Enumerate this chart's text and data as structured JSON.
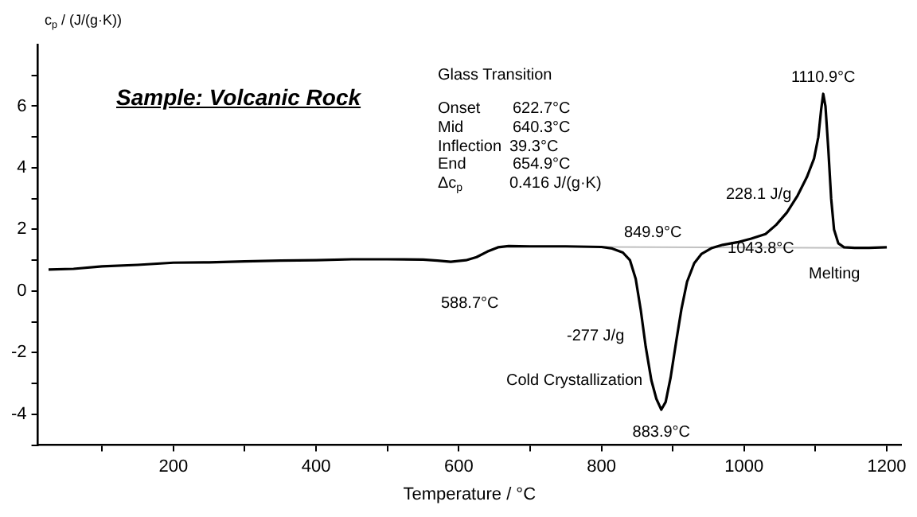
{
  "chart_data": {
    "type": "line",
    "title": "Sample: Volcanic Rock",
    "xlabel": "Temperature / °C",
    "ylabel": "c$_{p}$ / (J/(g·K))",
    "xlim": [
      10,
      1220
    ],
    "xticks": [
      {
        "value": 100,
        "label": null
      },
      200,
      {
        "value": 300,
        "label": null
      },
      400,
      {
        "value": 500,
        "label": null
      },
      600,
      {
        "value": 700,
        "label": null
      },
      800,
      {
        "value": 900,
        "label": null
      },
      1000,
      {
        "value": 1100,
        "label": null
      },
      1200
    ],
    "ylim": [
      -5,
      8
    ],
    "yticks": [
      {
        "value": -5,
        "label": null
      },
      -4,
      {
        "value": -3,
        "label": null
      },
      -2,
      {
        "value": -1,
        "label": null
      },
      0,
      {
        "value": 1,
        "label": null
      },
      2,
      {
        "value": 3,
        "label": null
      },
      4,
      {
        "value": 5,
        "label": null
      },
      6,
      {
        "value": 7,
        "label": null
      }
    ],
    "grid": false,
    "legend": false,
    "marker": "none",
    "line_style": "solid",
    "series": [
      {
        "color": "#000000",
        "x": [
          25,
          60,
          100,
          150,
          200,
          250,
          300,
          350,
          400,
          450,
          500,
          550,
          570,
          588.7,
          610,
          625,
          640,
          655,
          670,
          700,
          750,
          800,
          815,
          830,
          840,
          848,
          855,
          862,
          870,
          877,
          883.9,
          890,
          897,
          905,
          912,
          920,
          930,
          940,
          955,
          970,
          990,
          1010,
          1030,
          1045,
          1060,
          1075,
          1088,
          1098,
          1104,
          1108,
          1110.9,
          1114,
          1118,
          1122,
          1126,
          1132,
          1140,
          1155,
          1175,
          1200
        ],
        "values": [
          0.7,
          0.72,
          0.8,
          0.85,
          0.92,
          0.93,
          0.96,
          0.99,
          1.0,
          1.03,
          1.03,
          1.02,
          0.99,
          0.95,
          1.0,
          1.1,
          1.28,
          1.42,
          1.46,
          1.45,
          1.45,
          1.43,
          1.38,
          1.25,
          1.0,
          0.4,
          -0.6,
          -1.8,
          -2.9,
          -3.5,
          -3.85,
          -3.6,
          -2.8,
          -1.6,
          -0.6,
          0.3,
          0.9,
          1.2,
          1.4,
          1.5,
          1.58,
          1.7,
          1.85,
          2.15,
          2.55,
          3.1,
          3.7,
          4.3,
          5.0,
          5.9,
          6.4,
          6.0,
          4.6,
          3.0,
          2.0,
          1.55,
          1.42,
          1.4,
          1.4,
          1.42
        ]
      },
      {
        "color": "#c0c0c0",
        "x": [
          800,
          1170
        ],
        "values": [
          1.43,
          1.4
        ]
      }
    ],
    "annotations": [
      "Glass Transition",
      "Onset",
      "622.7°C",
      "Mid",
      "640.3°C",
      "Inflection",
      "39.3°C",
      "End",
      "654.9°C",
      "Δc$_{p}$",
      "0.416 J/(g·K)",
      {
        "text": "588.7°C",
        "x": 588.7,
        "y": 0.95
      },
      {
        "text": "849.9°C",
        "x": 849.9,
        "y": 1.42
      },
      {
        "text": "1110.9°C",
        "x": 1110.9,
        "y": 6.4
      },
      {
        "text": "1043.8°C",
        "x": 1043.8,
        "y": 1.8
      },
      {
        "text": "883.9°C",
        "x": 883.9,
        "y": -3.85
      },
      "228.1 J/g",
      "-277 J/g",
      "Cold Crystallization",
      "Melting"
    ]
  }
}
